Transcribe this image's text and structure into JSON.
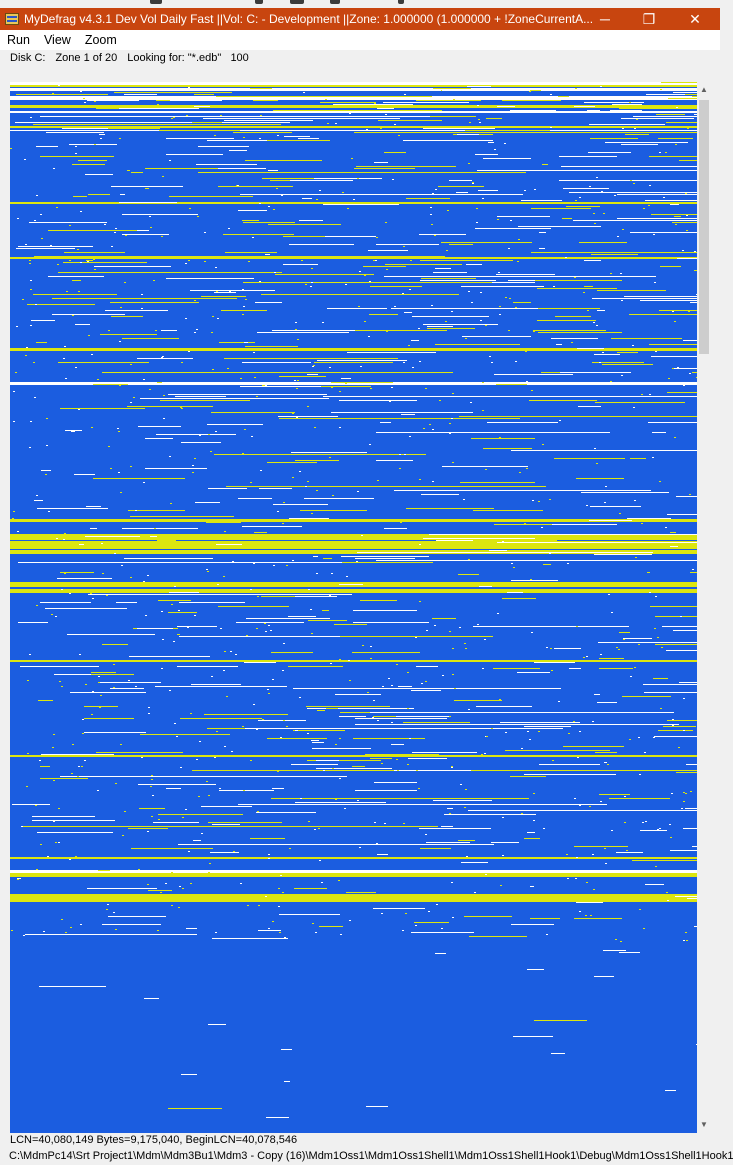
{
  "window": {
    "title": "MyDefrag v4.3.1   Dev Vol Daily Fast ||Vol: C: - Development ||Zone: 1.000000 (1.000000 + !ZoneCurrentA...",
    "minimize_glyph": "─",
    "maximize_glyph": "❐",
    "close_glyph": "✕"
  },
  "menu": [
    "Run",
    "View",
    "Zoom"
  ],
  "info": {
    "disk": "Disk C:",
    "zone": "Zone 1 of 20",
    "looking_for": "Looking for: \"*.edb\"   100"
  },
  "status": {
    "line1": "LCN=40,080,149     Bytes=9,175,040, BeginLCN=40,078,546",
    "line2": "C:\\MdmPc14\\Srt Project1\\Mdm\\Mdm3Bu1\\Mdm3 - Copy (16)\\Mdm1Oss1\\Mdm1Oss1Shell1\\Mdm1Oss1Shell1Hook1\\Debug\\Mdm1Oss1Shell1Hook1"
  },
  "scrollbar": {
    "up_glyph": "▲",
    "down_glyph": "▼"
  },
  "colors": {
    "title_bar": "#c8450f",
    "map_background": "#1b5de0",
    "fragment_yellow": "#dce60f",
    "fragment_white": "#ffffff"
  },
  "icons": {
    "app": "mydefrag-app-icon",
    "minimize": "minimize-icon",
    "maximize": "maximize-icon",
    "close": "close-icon",
    "scroll_up": "scroll-up-arrow-icon",
    "scroll_down": "scroll-down-arrow-icon"
  }
}
